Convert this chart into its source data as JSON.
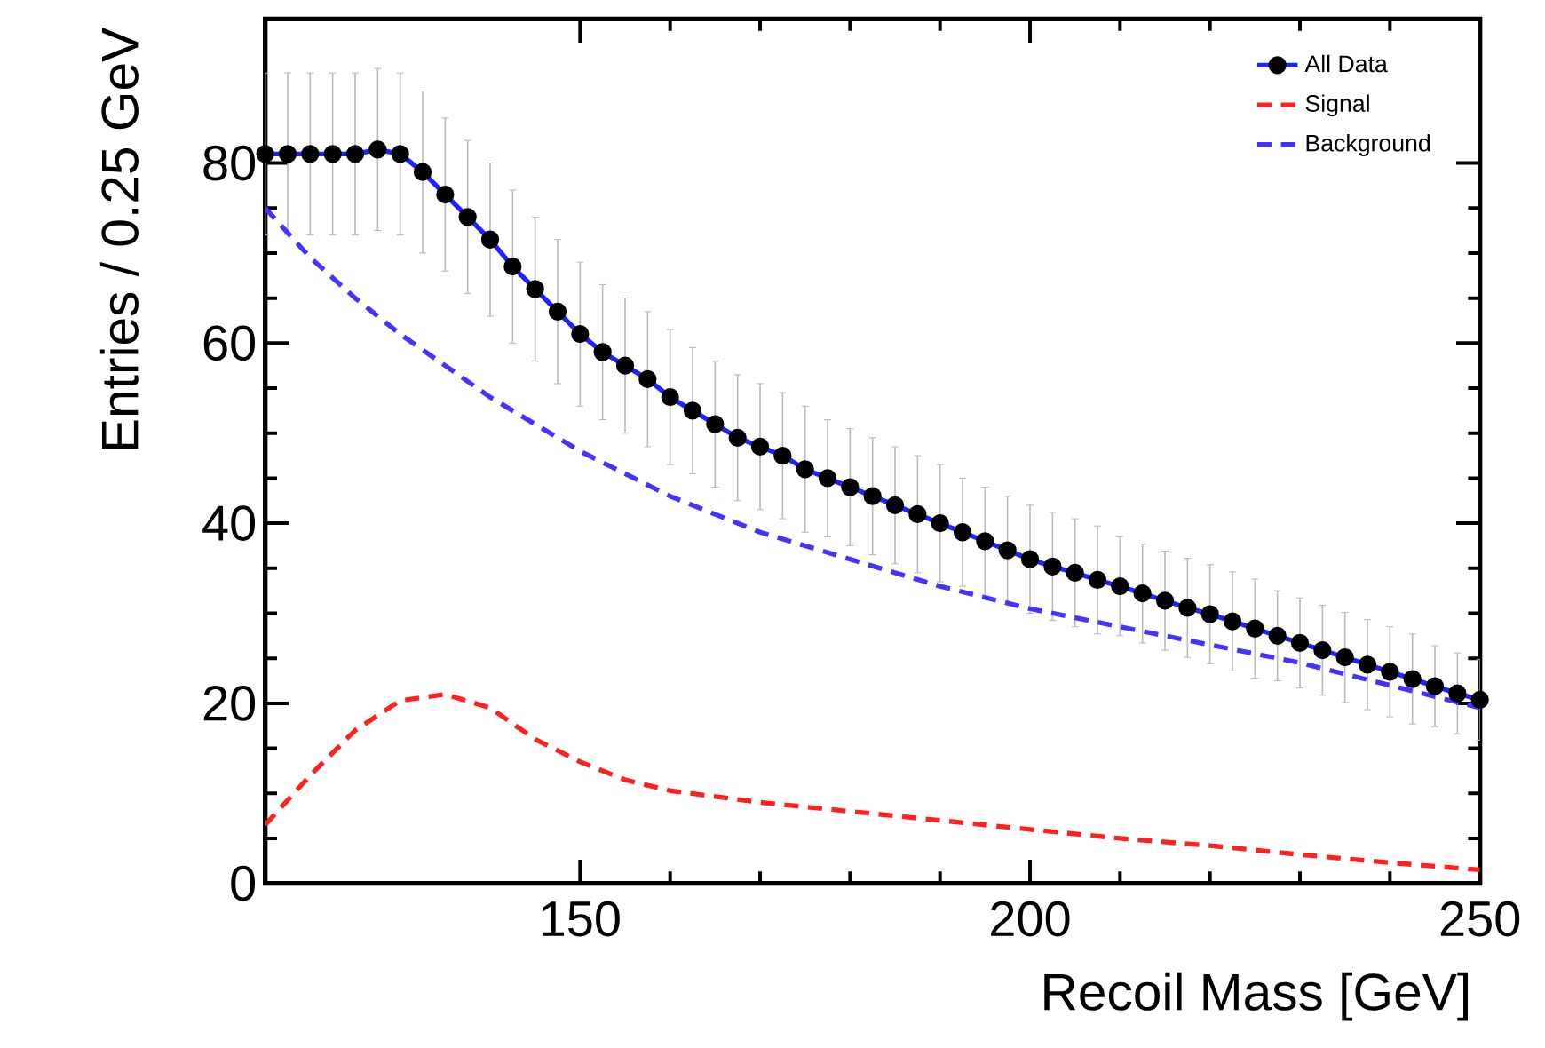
{
  "chart_data": {
    "type": "line",
    "xlabel": "Recoil Mass [GeV]",
    "ylabel": "Entries / 0.25 GeV",
    "xlim": [
      115,
      250
    ],
    "ylim": [
      0,
      96
    ],
    "xticks": [
      150,
      200,
      250
    ],
    "yticks": [
      0,
      20,
      40,
      60,
      80
    ],
    "legend": "top right",
    "series": [
      {
        "name": "All Data",
        "color": "#2222ff",
        "marker": "circle",
        "line_style": "solid",
        "x": [
          115,
          117.5,
          120,
          122.5,
          125,
          127.5,
          130,
          132.5,
          135,
          137.5,
          140,
          142.5,
          145,
          147.5,
          150,
          152.5,
          155,
          157.5,
          160,
          162.5,
          165,
          167.5,
          170,
          172.5,
          175,
          177.5,
          180,
          182.5,
          185,
          187.5,
          190,
          192.5,
          195,
          197.5,
          200,
          202.5,
          205,
          207.5,
          210,
          212.5,
          215,
          217.5,
          220,
          222.5,
          225,
          227.5,
          230,
          232.5,
          235,
          237.5,
          240,
          242.5,
          245,
          247.5,
          250
        ],
        "values": [
          81,
          81,
          81,
          81,
          81,
          81.5,
          81,
          79,
          76.5,
          74,
          71.5,
          68.5,
          66,
          63.5,
          61,
          59,
          57.5,
          56,
          54,
          52.5,
          51,
          49.5,
          48.5,
          47.5,
          46,
          45,
          44,
          43,
          42,
          41,
          40,
          39,
          38,
          37,
          36,
          35.2,
          34.5,
          33.7,
          33,
          32.2,
          31.4,
          30.6,
          29.9,
          29.1,
          28.3,
          27.5,
          26.7,
          25.9,
          25.1,
          24.3,
          23.5,
          22.7,
          21.9,
          21.1,
          20.4
        ],
        "errors": [
          9,
          9,
          9,
          9,
          9,
          9,
          9,
          9,
          8.5,
          8.5,
          8.5,
          8.5,
          8,
          8,
          8,
          7.5,
          7.5,
          7.5,
          7.5,
          7,
          7,
          7,
          7,
          7,
          7,
          6.5,
          6.5,
          6.5,
          6.5,
          6.5,
          6.5,
          6,
          6,
          6,
          6,
          6,
          6,
          6,
          5.5,
          5.5,
          5.5,
          5.5,
          5.5,
          5.5,
          5.5,
          5,
          5,
          5,
          5,
          5,
          5,
          5,
          4.5,
          4.5,
          4.5
        ]
      },
      {
        "name": "Signal",
        "color": "#ff2020",
        "marker": "none",
        "line_style": "dashed",
        "x": [
          115,
          120,
          125,
          130,
          135,
          140,
          145,
          150,
          155,
          160,
          170,
          180,
          190,
          200,
          210,
          220,
          230,
          240,
          250
        ],
        "values": [
          6.5,
          12,
          17,
          20.3,
          21,
          19.5,
          16,
          13.5,
          11.5,
          10.3,
          9,
          8,
          7,
          6,
          5,
          4.2,
          3.2,
          2.3,
          1.5
        ]
      },
      {
        "name": "Background",
        "color": "#4433ff",
        "marker": "none",
        "line_style": "dashed",
        "x": [
          115,
          120,
          125,
          130,
          135,
          140,
          145,
          150,
          155,
          160,
          165,
          170,
          175,
          180,
          190,
          200,
          210,
          220,
          230,
          240,
          250
        ],
        "values": [
          75,
          69.5,
          65,
          61,
          57.5,
          54,
          51,
          48,
          45.5,
          43,
          41,
          39,
          37.5,
          36,
          33,
          30.5,
          28.5,
          26.5,
          24.5,
          22,
          19.5
        ]
      }
    ]
  }
}
